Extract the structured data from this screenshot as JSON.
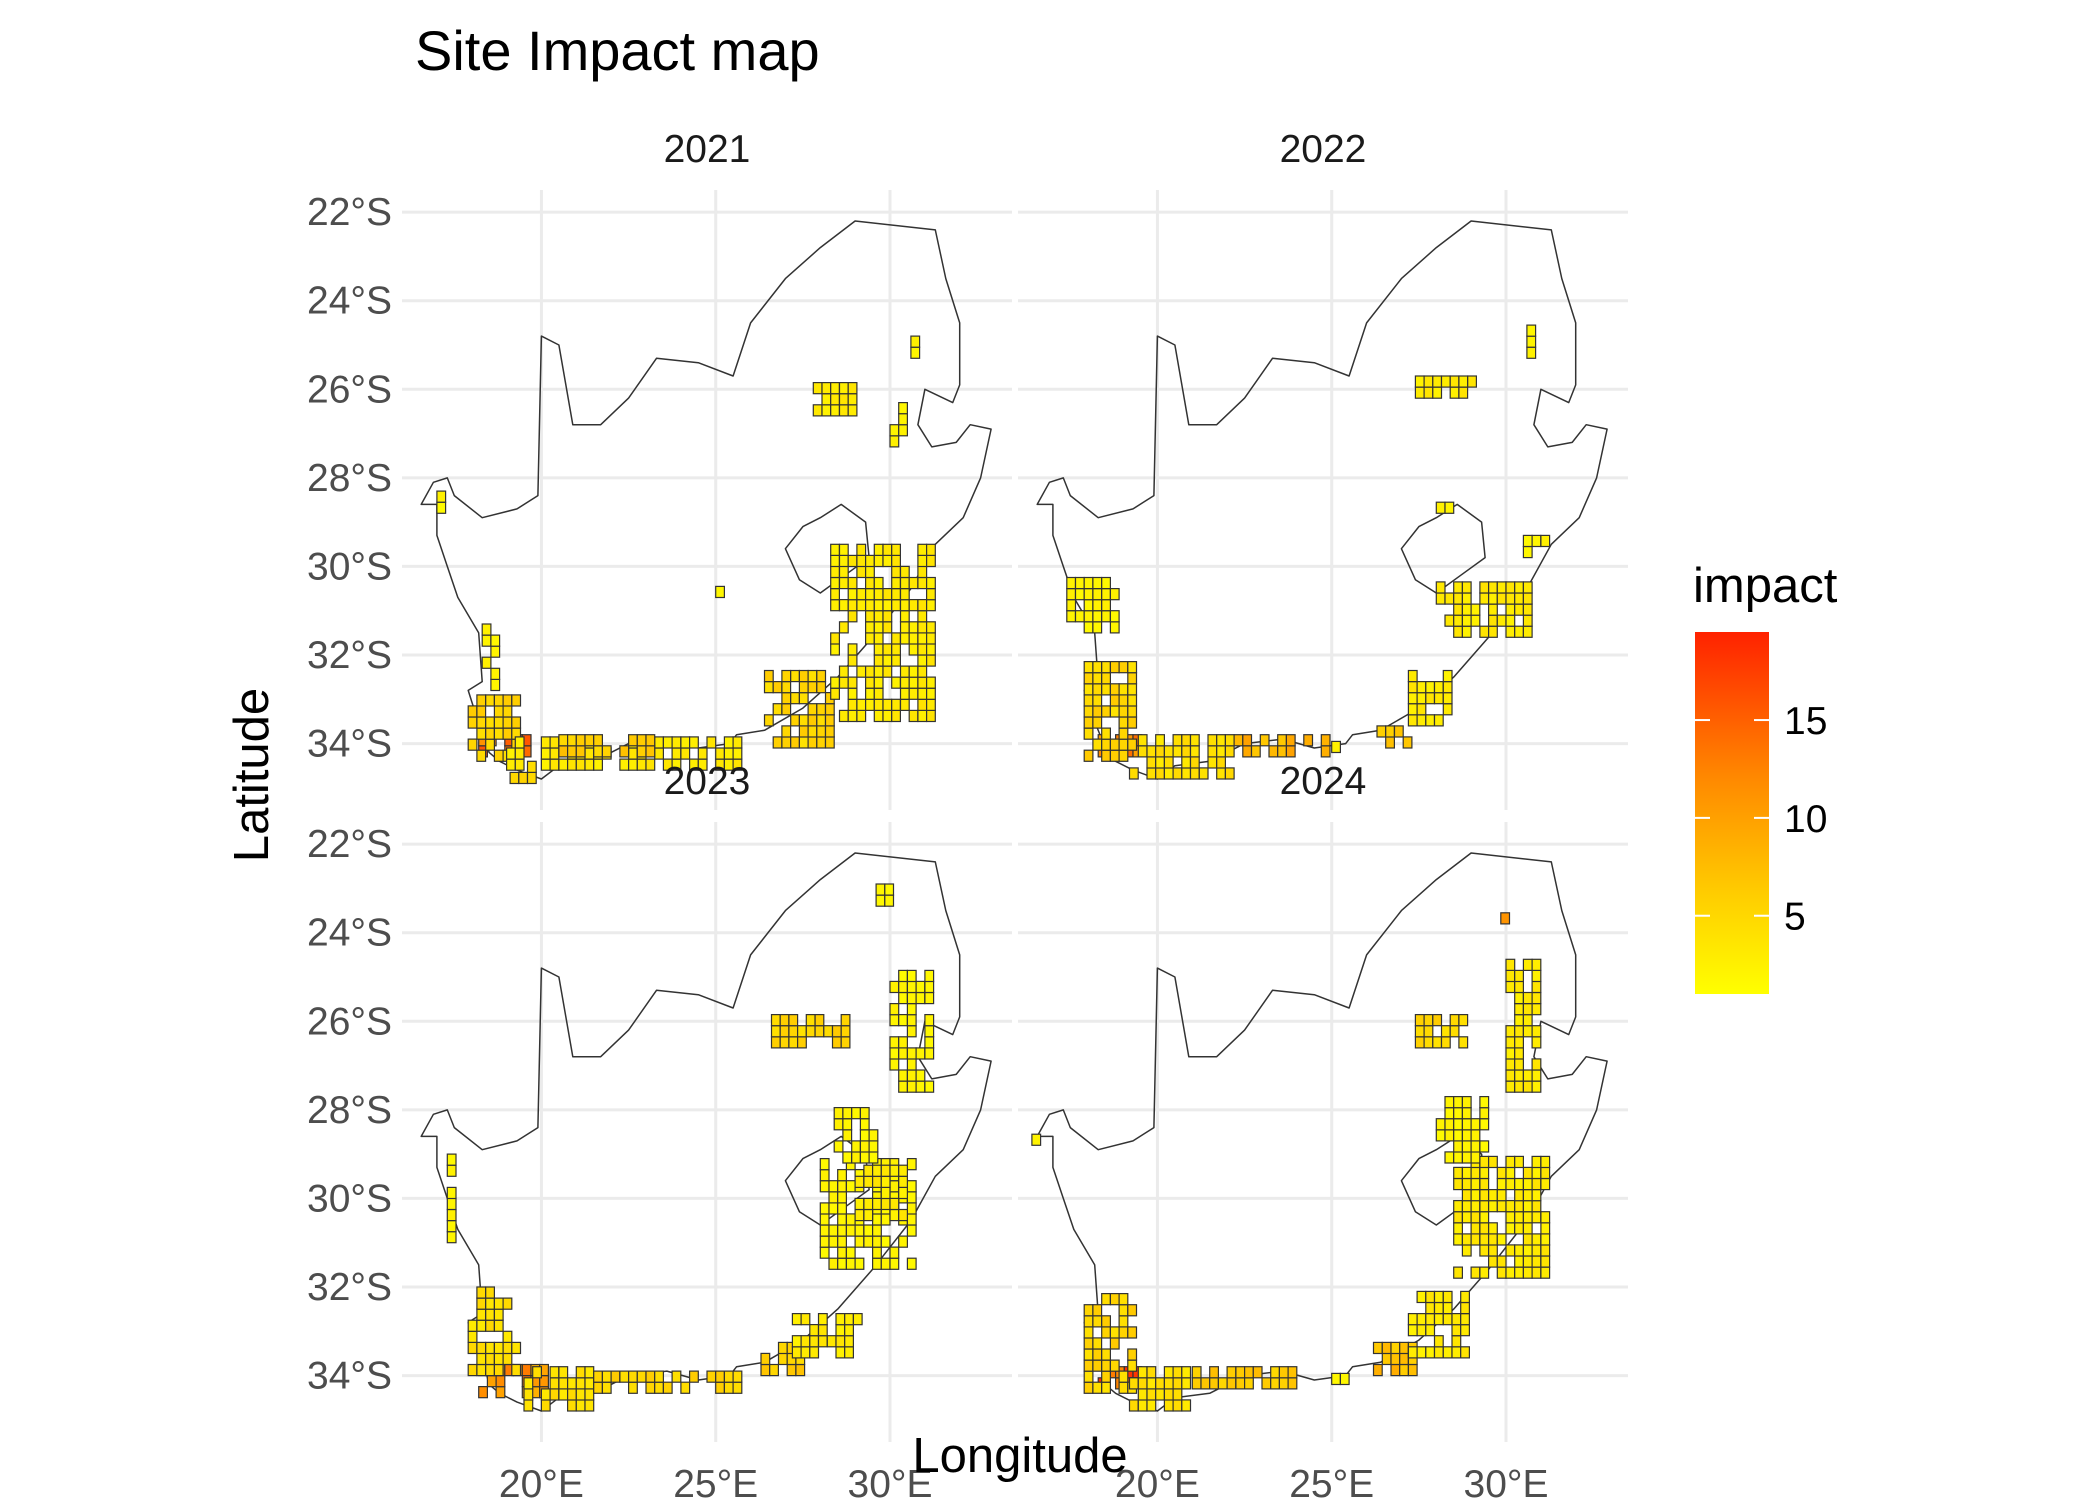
{
  "chart_data": {
    "type": "heatmap",
    "title": "Site Impact map",
    "xlabel": "Longitude",
    "ylabel": "Latitude",
    "xlim": [
      16.0,
      33.5
    ],
    "ylim": [
      -35.5,
      -21.5
    ],
    "x_ticks": [
      20,
      25,
      30
    ],
    "x_tick_labels": [
      "20°E",
      "25°E",
      "30°E"
    ],
    "y_ticks": [
      -22,
      -24,
      -26,
      -28,
      -30,
      -32,
      -34
    ],
    "y_tick_labels": [
      "22°S",
      "24°S",
      "26°S",
      "28°S",
      "30°S",
      "32°S",
      "34°S"
    ],
    "grid": true,
    "legend": {
      "title": "impact",
      "position": "right",
      "range": [
        1,
        19.5
      ],
      "colors": [
        "#ffff00",
        "#ffcc00",
        "#ff8800",
        "#ff2200"
      ],
      "breaks": [
        15,
        10,
        5
      ],
      "break_labels": [
        "15",
        "10",
        "5"
      ]
    },
    "cell_size_deg": 0.25,
    "panels": [
      {
        "label": "2021",
        "clusters": [
          {
            "lon": [
              18.2,
              19.8
            ],
            "lat": [
              -34.3,
              -33.9
            ],
            "v": 13
          },
          {
            "lon": [
              17.9,
              19.3
            ],
            "lat": [
              -34.4,
              -32.9
            ],
            "v": 5
          },
          {
            "lon": [
              19.0,
              25.8
            ],
            "lat": [
              -34.6,
              -33.9
            ],
            "v": 3
          },
          {
            "lon": [
              19.1,
              20.2
            ],
            "lat": [
              -34.9,
              -34.3
            ],
            "v": 5
          },
          {
            "lon": [
              20.5,
              23.5
            ],
            "lat": [
              -34.3,
              -33.9
            ],
            "v": 6
          },
          {
            "lon": [
              26.4,
              28.5
            ],
            "lat": [
              -34.1,
              -32.4
            ],
            "v": 5
          },
          {
            "lon": [
              28.3,
              31.2
            ],
            "lat": [
              -33.5,
              -29.6
            ],
            "v": 3
          },
          {
            "lon": [
              27.8,
              29.0
            ],
            "lat": [
              -26.6,
              -25.8
            ],
            "v": 3
          },
          {
            "lon": [
              30.6,
              30.9
            ],
            "lat": [
              -25.3,
              -24.7
            ],
            "v": 2
          },
          {
            "lon": [
              18.3,
              18.8
            ],
            "lat": [
              -32.8,
              -31.2
            ],
            "v": 2
          },
          {
            "lon": [
              17.0,
              17.3
            ],
            "lat": [
              -28.8,
              -28.3
            ],
            "v": 2
          },
          {
            "lon": [
              30.0,
              30.6
            ],
            "lat": [
              -27.3,
              -26.4
            ],
            "v": 2
          },
          {
            "lon": [
              25.0,
              25.3
            ],
            "lat": [
              -30.7,
              -30.5
            ],
            "v": 2
          }
        ]
      },
      {
        "label": "2022",
        "clusters": [
          {
            "lon": [
              18.3,
              19.6
            ],
            "lat": [
              -34.3,
              -33.8
            ],
            "v": 13
          },
          {
            "lon": [
              17.9,
              19.3
            ],
            "lat": [
              -34.4,
              -32.2
            ],
            "v": 5
          },
          {
            "lon": [
              19.2,
              22.2
            ],
            "lat": [
              -34.8,
              -33.9
            ],
            "v": 4
          },
          {
            "lon": [
              22.2,
              25.0
            ],
            "lat": [
              -34.3,
              -33.8
            ],
            "v": 8
          },
          {
            "lon": [
              25.0,
              25.2
            ],
            "lat": [
              -34.2,
              -33.9
            ],
            "v": 2
          },
          {
            "lon": [
              26.3,
              27.2
            ],
            "lat": [
              -34.1,
              -33.5
            ],
            "v": 6
          },
          {
            "lon": [
              27.2,
              28.4
            ],
            "lat": [
              -33.6,
              -32.4
            ],
            "v": 3
          },
          {
            "lon": [
              28.0,
              30.8
            ],
            "lat": [
              -31.6,
              -30.3
            ],
            "v": 3
          },
          {
            "lon": [
              27.4,
              29.4
            ],
            "lat": [
              -26.2,
              -25.6
            ],
            "v": 3
          },
          {
            "lon": [
              30.5,
              31.3
            ],
            "lat": [
              -29.8,
              -29.2
            ],
            "v": 2
          },
          {
            "lon": [
              30.6,
              30.9
            ],
            "lat": [
              -25.3,
              -24.6
            ],
            "v": 2
          },
          {
            "lon": [
              28.0,
              28.5
            ],
            "lat": [
              -28.8,
              -28.5
            ],
            "v": 2
          },
          {
            "lon": [
              17.4,
              18.8
            ],
            "lat": [
              -31.5,
              -30.3
            ],
            "v": 2
          }
        ]
      },
      {
        "label": "2023",
        "clusters": [
          {
            "lon": [
              18.2,
              20.2
            ],
            "lat": [
              -34.5,
              -33.8
            ],
            "v": 11
          },
          {
            "lon": [
              17.9,
              19.5
            ],
            "lat": [
              -34.0,
              -32.0
            ],
            "v": 4
          },
          {
            "lon": [
              19.5,
              21.5
            ],
            "lat": [
              -34.8,
              -33.8
            ],
            "v": 4
          },
          {
            "lon": [
              21.5,
              25.8
            ],
            "lat": [
              -34.4,
              -33.8
            ],
            "v": 5
          },
          {
            "lon": [
              26.3,
              27.5
            ],
            "lat": [
              -34.0,
              -33.3
            ],
            "v": 6
          },
          {
            "lon": [
              27.2,
              29.1
            ],
            "lat": [
              -33.6,
              -32.5
            ],
            "v": 3
          },
          {
            "lon": [
              28.0,
              30.8
            ],
            "lat": [
              -31.6,
              -29.2
            ],
            "v": 2
          },
          {
            "lon": [
              29.0,
              30.6
            ],
            "lat": [
              -30.5,
              -29.3
            ],
            "v": 3
          },
          {
            "lon": [
              26.6,
              28.8
            ],
            "lat": [
              -26.6,
              -25.8
            ],
            "v": 5
          },
          {
            "lon": [
              30.0,
              31.2
            ],
            "lat": [
              -27.6,
              -24.9
            ],
            "v": 2
          },
          {
            "lon": [
              28.4,
              29.6
            ],
            "lat": [
              -29.2,
              -28.0
            ],
            "v": 2
          },
          {
            "lon": [
              29.6,
              30.1
            ],
            "lat": [
              -23.4,
              -23.0
            ],
            "v": 2
          },
          {
            "lon": [
              17.3,
              17.6
            ],
            "lat": [
              -31.0,
              -29.0
            ],
            "v": 2
          }
        ]
      },
      {
        "label": "2024",
        "clusters": [
          {
            "lon": [
              18.3,
              19.6
            ],
            "lat": [
              -34.3,
              -33.8
            ],
            "v": 15
          },
          {
            "lon": [
              17.9,
              19.3
            ],
            "lat": [
              -34.4,
              -32.2
            ],
            "v": 5
          },
          {
            "lon": [
              19.2,
              21.0
            ],
            "lat": [
              -34.8,
              -33.9
            ],
            "v": 4
          },
          {
            "lon": [
              21.0,
              24.0
            ],
            "lat": [
              -34.3,
              -33.8
            ],
            "v": 6
          },
          {
            "lon": [
              25.0,
              25.6
            ],
            "lat": [
              -34.2,
              -33.9
            ],
            "v": 2
          },
          {
            "lon": [
              26.2,
              27.4
            ],
            "lat": [
              -34.0,
              -33.3
            ],
            "v": 7
          },
          {
            "lon": [
              27.2,
              29.0
            ],
            "lat": [
              -33.6,
              -32.0
            ],
            "v": 3
          },
          {
            "lon": [
              28.5,
              31.3
            ],
            "lat": [
              -31.8,
              -29.0
            ],
            "v": 3
          },
          {
            "lon": [
              27.4,
              28.8
            ],
            "lat": [
              -26.6,
              -25.8
            ],
            "v": 5
          },
          {
            "lon": [
              30.0,
              30.9
            ],
            "lat": [
              -27.6,
              -24.6
            ],
            "v": 3
          },
          {
            "lon": [
              29.6,
              30.1
            ],
            "lat": [
              -23.8,
              -23.3
            ],
            "v": 9
          },
          {
            "lon": [
              28.0,
              29.6
            ],
            "lat": [
              -29.2,
              -27.6
            ],
            "v": 2
          },
          {
            "lon": [
              16.4,
              16.7
            ],
            "lat": [
              -28.8,
              -28.5
            ],
            "v": 2
          }
        ]
      }
    ]
  }
}
